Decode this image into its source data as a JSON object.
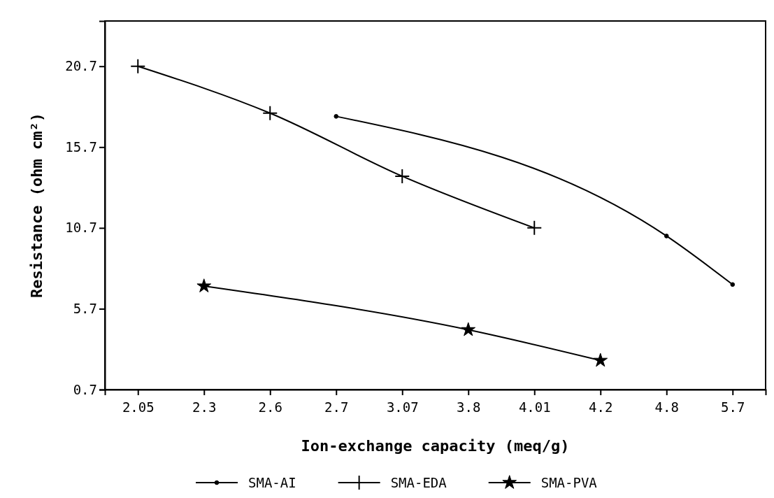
{
  "chart_data": {
    "type": "line",
    "xlabel": "Ion-exchange capacity (meq/g)",
    "ylabel": "Resistance (ohm cm²)",
    "categories": [
      "2.05",
      "2.3",
      "2.6",
      "2.7",
      "3.07",
      "3.8",
      "4.01",
      "4.2",
      "4.8",
      "5.7"
    ],
    "ylim": [
      0.7,
      23.5
    ],
    "yticks": [
      0.7,
      5.7,
      10.7,
      15.7,
      20.7
    ],
    "grid": false,
    "legend": "bottom",
    "series": [
      {
        "name": "SMA-AI",
        "color": "#000000",
        "marker": "circle",
        "values": [
          null,
          null,
          null,
          17.6,
          null,
          null,
          null,
          null,
          10.2,
          7.2
        ]
      },
      {
        "name": "SMA-EDA",
        "color": "#000000",
        "marker": "cross",
        "values": [
          20.7,
          null,
          17.8,
          null,
          13.9,
          null,
          10.7,
          null,
          null,
          null
        ]
      },
      {
        "name": "SMA-PVA",
        "color": "#000000",
        "marker": "star",
        "values": [
          null,
          7.1,
          null,
          null,
          null,
          4.4,
          null,
          2.5,
          null,
          null
        ]
      }
    ]
  }
}
